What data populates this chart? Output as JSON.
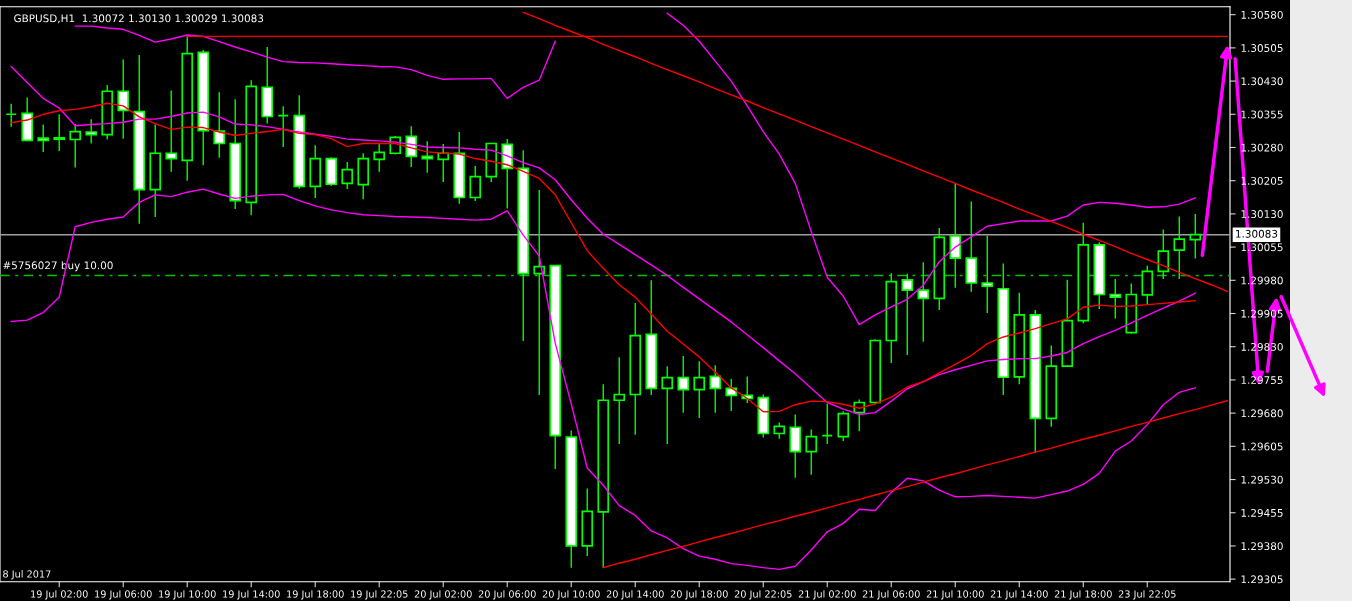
{
  "chart_data": {
    "type": "candlestick",
    "title": "GBPUSD,H1  1.30072 1.30130 1.30029 1.30083",
    "color": "#00ff00",
    "colors": [
      "#00ff00",
      "#ffffff",
      "#ffffff",
      "#ffffff",
      "#000000",
      "#ffffff",
      "#000000",
      "#ffffff",
      "#ffffff",
      "#000000",
      "#ffffff",
      "#000000",
      "#ffffff",
      "#ffffff",
      "#ffffff",
      "#000000",
      "#ffffff",
      "#00ff00",
      "#ffffff",
      "#000000",
      "#ffffff",
      "#000000",
      "#000000",
      "#000000",
      "#000000",
      "#ffffff",
      "#ffffff",
      "#000000",
      "#ffffff",
      "#000000",
      "#000000",
      "#ffffff",
      "#ffffff",
      "#000000",
      "#ffffff",
      "#ffffff",
      "#000000",
      "#000000",
      "#000000",
      "#000000",
      "#ffffff",
      "#000000",
      "#ffffff",
      "#000000",
      "#ffffff",
      "#ffffff",
      "#ffffff",
      "#ffffff",
      "#000000",
      "#ffffff",
      "#000000",
      "#00ff00",
      "#000000",
      "#000000",
      "#000000",
      "#000000",
      "#ffffff",
      "#ffffff",
      "#000000",
      "#ffffff",
      "#ffffff",
      "#ffffff",
      "#ffffff",
      "#000000",
      "#ffffff",
      "#000000",
      "#000000",
      "#000000",
      "#ffffff",
      "#ffffff",
      "#000000",
      "#000000",
      "#000000",
      "#000000",
      "#000000",
      null,
      null
    ],
    "categories": [
      null,
      null,
      null,
      "19 Jul 02:00",
      null,
      null,
      null,
      "19 Jul 06:00",
      null,
      null,
      null,
      "19 Jul 10:00",
      null,
      null,
      null,
      "19 Jul 14:00",
      null,
      null,
      null,
      "19 Jul 18:00",
      null,
      null,
      null,
      "19 Jul 22:05",
      null,
      null,
      null,
      "20 Jul 02:00",
      null,
      null,
      null,
      "20 Jul 06:00",
      null,
      null,
      null,
      "20 Jul 10:00",
      null,
      null,
      null,
      "20 Jul 14:00",
      null,
      null,
      null,
      "20 Jul 18:00",
      null,
      null,
      null,
      "20 Jul 22:05",
      null,
      null,
      null,
      "21 Jul 02:00",
      null,
      null,
      null,
      "21 Jul 06:00",
      null,
      null,
      null,
      "21 Jul 10:00",
      null,
      null,
      null,
      "21 Jul 14:00",
      null,
      null,
      null,
      "21 Jul 18:00",
      null,
      null,
      null,
      "23 Jul 22:05",
      null,
      null,
      null,
      null,
      null
    ],
    "ohlc": [
      [
        1.30355,
        1.30379,
        1.30327,
        1.30355
      ],
      [
        1.30357,
        1.30393,
        1.30294,
        1.30296
      ],
      [
        1.30301,
        1.30332,
        1.3027,
        1.30296
      ],
      [
        1.30302,
        1.30355,
        1.30272,
        1.30299
      ],
      [
        1.30298,
        1.30333,
        1.30235,
        1.30316
      ],
      [
        1.30315,
        1.30344,
        1.30289,
        1.30309
      ],
      [
        1.30309,
        1.30421,
        1.30298,
        1.30407
      ],
      [
        1.30407,
        1.30479,
        1.303,
        1.30364
      ],
      [
        1.30361,
        1.30489,
        1.30108,
        1.30185
      ],
      [
        1.30185,
        1.30332,
        1.30123,
        1.30267
      ],
      [
        1.30267,
        1.30409,
        1.30225,
        1.30255
      ],
      [
        1.30251,
        1.3053,
        1.30205,
        1.30492
      ],
      [
        1.30495,
        1.305,
        1.3024,
        1.30318
      ],
      [
        1.30317,
        1.30405,
        1.30257,
        1.30289
      ],
      [
        1.30289,
        1.30389,
        1.30141,
        1.3016
      ],
      [
        1.30156,
        1.30432,
        1.30127,
        1.30418
      ],
      [
        1.30416,
        1.30507,
        1.30334,
        1.3035
      ],
      [
        1.30352,
        1.30373,
        1.30281,
        1.30352
      ],
      [
        1.30352,
        1.30398,
        1.30187,
        1.30192
      ],
      [
        1.30192,
        1.30285,
        1.30166,
        1.30255
      ],
      [
        1.30255,
        1.30258,
        1.30193,
        1.30197
      ],
      [
        1.30199,
        1.30247,
        1.30186,
        1.3023
      ],
      [
        1.30196,
        1.30267,
        1.30163,
        1.30255
      ],
      [
        1.30253,
        1.30288,
        1.30225,
        1.30269
      ],
      [
        1.30267,
        1.30306,
        1.30264,
        1.30303
      ],
      [
        1.30305,
        1.30328,
        1.30236,
        1.3026
      ],
      [
        1.3026,
        1.30294,
        1.30223,
        1.30255
      ],
      [
        1.30253,
        1.30288,
        1.30202,
        1.30267
      ],
      [
        1.30267,
        1.30315,
        1.30153,
        1.30167
      ],
      [
        1.30167,
        1.30238,
        1.30159,
        1.30214
      ],
      [
        1.30214,
        1.30289,
        1.30202,
        1.30289
      ],
      [
        1.30287,
        1.30299,
        1.30142,
        1.30233
      ],
      [
        1.30233,
        1.30274,
        1.29843,
        1.29995
      ],
      [
        1.29995,
        1.30184,
        1.29721,
        1.30011
      ],
      [
        1.30013,
        1.30013,
        1.29554,
        1.29629
      ],
      [
        1.29626,
        1.29641,
        1.29331,
        1.2938
      ],
      [
        1.2938,
        1.2951,
        1.29357,
        1.29458
      ],
      [
        1.29457,
        1.29745,
        1.29331,
        1.29709
      ],
      [
        1.29709,
        1.29806,
        1.2961,
        1.29722
      ],
      [
        1.29722,
        1.29929,
        1.29631,
        1.29855
      ],
      [
        1.29858,
        1.2998,
        1.29721,
        1.29736
      ],
      [
        1.29736,
        1.29786,
        1.2961,
        1.2976
      ],
      [
        1.2976,
        1.29809,
        1.29681,
        1.29733
      ],
      [
        1.29733,
        1.29797,
        1.29669,
        1.2976
      ],
      [
        1.29763,
        1.29788,
        1.29681,
        1.29736
      ],
      [
        1.29736,
        1.29757,
        1.29685,
        1.2972
      ],
      [
        1.2972,
        1.29763,
        1.29703,
        1.29713
      ],
      [
        1.29715,
        1.29722,
        1.29625,
        1.29634
      ],
      [
        1.29634,
        1.29659,
        1.29622,
        1.2965
      ],
      [
        1.29648,
        1.29677,
        1.29534,
        1.29593
      ],
      [
        1.29593,
        1.29643,
        1.29541,
        1.29627
      ],
      [
        1.29629,
        1.29701,
        1.2961,
        1.29629
      ],
      [
        1.29627,
        1.29684,
        1.29617,
        1.29679
      ],
      [
        1.29681,
        1.29711,
        1.29639,
        1.29704
      ],
      [
        1.29704,
        1.29847,
        1.297,
        1.29844
      ],
      [
        1.29844,
        1.29996,
        1.29793,
        1.29977
      ],
      [
        1.29981,
        1.29995,
        1.29811,
        1.29958
      ],
      [
        1.29958,
        1.30021,
        1.29841,
        1.29939
      ],
      [
        1.29939,
        1.30098,
        1.29913,
        1.30077
      ],
      [
        1.3008,
        1.30198,
        1.29963,
        1.3003
      ],
      [
        1.3003,
        1.30158,
        1.29954,
        1.29974
      ],
      [
        1.29974,
        1.30081,
        1.29906,
        1.29967
      ],
      [
        1.29961,
        1.30018,
        1.29721,
        1.29761
      ],
      [
        1.29762,
        1.29952,
        1.29745,
        1.29902
      ],
      [
        1.29902,
        1.29913,
        1.29591,
        1.29668
      ],
      [
        1.29668,
        1.29833,
        1.29649,
        1.29786
      ],
      [
        1.29786,
        1.29981,
        1.29786,
        1.29889
      ],
      [
        1.29889,
        1.3011,
        1.29883,
        1.3006
      ],
      [
        1.3006,
        1.30066,
        1.29915,
        1.29948
      ],
      [
        1.29948,
        1.29983,
        1.29894,
        1.29942
      ],
      [
        1.29862,
        1.29973,
        1.29859,
        1.29948
      ],
      [
        1.29947,
        1.30013,
        1.29926,
        1.3
      ],
      [
        1.3,
        1.30095,
        1.29983,
        1.30046
      ],
      [
        1.30048,
        1.30124,
        1.29983,
        1.30073
      ],
      [
        1.30072,
        1.3013,
        1.30029,
        1.30083
      ],
      null,
      null
    ],
    "series": [
      {
        "type": "line",
        "color": "#ff00ff",
        "values": [
          null,
          null,
          null,
          null,
          1.30554,
          1.30554,
          1.3055,
          1.30547,
          1.30533,
          1.30518,
          1.30525,
          1.30534,
          1.30531,
          1.30519,
          1.30507,
          1.30496,
          1.30484,
          1.30474,
          1.30472,
          1.30471,
          1.30469,
          1.30467,
          1.30465,
          1.30463,
          1.30462,
          1.30456,
          1.30443,
          1.30434,
          1.30435,
          1.30435,
          1.30436,
          1.30391,
          1.30416,
          1.30432,
          1.3052,
          null,
          null,
          null,
          null,
          null,
          null,
          1.30583,
          1.30556,
          1.3052,
          1.30475,
          1.3043,
          1.30374,
          1.30316,
          1.30265,
          1.30199,
          1.3009,
          1.29987,
          1.29944,
          1.2988,
          1.29902,
          1.2992,
          1.29937,
          1.29969,
          1.30022,
          1.30055,
          1.30078,
          1.30102,
          1.30108,
          1.30114,
          1.30114,
          1.30114,
          1.30125,
          1.3015,
          1.30156,
          1.30154,
          1.3015,
          1.30145,
          1.30146,
          1.30152,
          1.30166,
          null,
          null
        ]
      },
      {
        "type": "line",
        "color": "#ff00ff",
        "values": [
          1.30463,
          1.30427,
          1.30391,
          1.30369,
          1.30329,
          1.30332,
          1.30334,
          1.30337,
          1.30344,
          1.30344,
          1.3035,
          1.30358,
          1.3036,
          1.30349,
          1.30333,
          1.30331,
          1.30327,
          1.30321,
          1.30315,
          1.3031,
          1.30305,
          1.30299,
          1.30297,
          1.30295,
          1.30292,
          1.30287,
          1.30281,
          1.3028,
          1.30279,
          1.30276,
          1.30274,
          1.30261,
          1.30246,
          1.30234,
          1.30207,
          1.30162,
          1.3012,
          1.30084,
          1.30061,
          1.30038,
          1.30015,
          1.29991,
          1.29964,
          1.29938,
          1.29912,
          1.29886,
          1.29857,
          1.29828,
          1.29798,
          1.29769,
          1.29736,
          1.29704,
          1.29689,
          1.29677,
          1.29681,
          1.29707,
          1.29735,
          1.29751,
          1.29767,
          1.29778,
          1.29788,
          1.29798,
          1.29801,
          1.29803,
          1.29803,
          1.29809,
          1.29817,
          1.29837,
          1.29853,
          1.29867,
          1.29884,
          1.29901,
          1.29917,
          1.29933,
          1.29951,
          null,
          null
        ]
      },
      {
        "type": "line",
        "color": "#ff00ff",
        "values": [
          1.29887,
          1.2989,
          1.29907,
          1.29942,
          1.30101,
          1.30111,
          1.30118,
          1.30123,
          1.30156,
          1.30173,
          1.30169,
          1.30179,
          1.30186,
          1.30175,
          1.30165,
          1.3017,
          1.30173,
          1.30174,
          1.3016,
          1.30148,
          1.30139,
          1.30133,
          1.30128,
          1.30126,
          1.30124,
          1.30123,
          1.30122,
          1.3012,
          1.30118,
          1.30116,
          1.30118,
          1.30137,
          1.30082,
          1.30035,
          1.29838,
          1.29701,
          1.29556,
          1.29517,
          1.29471,
          1.29449,
          1.29414,
          1.29398,
          1.29374,
          1.29357,
          1.2935,
          1.2934,
          1.29336,
          1.29331,
          1.29327,
          1.29334,
          1.29371,
          1.29412,
          1.29431,
          1.29463,
          1.2946,
          1.29501,
          1.29533,
          1.29527,
          1.29506,
          1.29491,
          1.29492,
          1.29494,
          1.29492,
          1.2949,
          1.29488,
          1.29496,
          1.29504,
          1.29519,
          1.29544,
          1.29594,
          1.29617,
          1.29654,
          1.29699,
          1.29727,
          1.29737,
          null,
          null
        ]
      },
      {
        "type": "line",
        "color": "#ff0000",
        "values": [
          1.30336,
          1.30342,
          1.30355,
          1.30363,
          1.30366,
          1.30372,
          1.3038,
          1.30374,
          1.30349,
          1.30334,
          1.30321,
          1.30326,
          1.30325,
          1.30315,
          1.30307,
          1.30312,
          1.30316,
          1.30321,
          1.30312,
          1.30309,
          1.303,
          1.30282,
          1.30289,
          1.30289,
          1.30289,
          1.30279,
          1.3027,
          1.30267,
          1.30265,
          1.30255,
          1.30249,
          1.30241,
          1.30226,
          1.3021,
          1.30173,
          1.3011,
          1.30047,
          1.30007,
          1.2997,
          1.29942,
          1.29904,
          1.29865,
          1.29836,
          1.29807,
          1.29773,
          1.29737,
          1.29713,
          1.29683,
          1.29684,
          1.29699,
          1.29707,
          1.29706,
          1.297,
          1.29691,
          1.29701,
          1.29716,
          1.29739,
          1.29751,
          1.29771,
          1.2979,
          1.2981,
          1.29837,
          1.29852,
          1.29861,
          1.29871,
          1.29882,
          1.29893,
          1.29919,
          1.29924,
          1.29921,
          1.29922,
          1.29925,
          1.29928,
          1.29931,
          1.29934,
          null,
          null
        ]
      },
      {
        "type": "line",
        "color": "#ff0000",
        "values": [
          null,
          null,
          null,
          null,
          null,
          null,
          null,
          null,
          null,
          null,
          null,
          1.30531,
          1.30531,
          1.30531,
          1.30531,
          1.30531,
          1.30531,
          1.30531,
          1.30531,
          1.30531,
          1.30531,
          1.30531,
          1.30531,
          1.30531,
          1.30531,
          1.30531,
          1.30531,
          1.30531,
          1.30531,
          1.30531,
          1.30531,
          1.30531,
          1.30531,
          1.30531,
          1.30531,
          1.30531,
          1.30531,
          1.30531,
          1.30531,
          1.30531,
          1.30531,
          1.30531,
          1.30531,
          1.30531,
          1.30531,
          1.30531,
          1.30531,
          1.30531,
          1.30531,
          1.30531,
          1.30531,
          1.30531,
          1.30531,
          1.30531,
          1.30531,
          1.30531,
          1.30531,
          1.30531,
          1.30531,
          1.30531,
          1.30531,
          1.30531,
          1.30531,
          1.30531,
          1.30531,
          1.30531,
          1.30531,
          1.30531,
          1.30531,
          1.30531,
          1.30531,
          1.30531,
          1.30531,
          1.30531,
          1.30531,
          1.30531,
          1.30531
        ]
      },
      {
        "type": "line",
        "color": "#ff0000",
        "values": [
          null,
          null,
          null,
          null,
          null,
          null,
          null,
          null,
          null,
          null,
          null,
          null,
          null,
          null,
          null,
          null,
          null,
          null,
          null,
          null,
          null,
          null,
          null,
          null,
          null,
          null,
          null,
          null,
          null,
          null,
          null,
          null,
          1.30585,
          1.30571,
          1.30556,
          1.30542,
          1.30528,
          1.30513,
          1.30499,
          1.30485,
          1.3047,
          1.30456,
          1.30442,
          1.30428,
          1.30413,
          1.30399,
          1.30385,
          1.3037,
          1.30356,
          1.30342,
          1.30327,
          1.30313,
          1.30299,
          1.30285,
          1.3027,
          1.30256,
          1.30242,
          1.30227,
          1.30213,
          1.30199,
          1.30184,
          1.3017,
          1.30156,
          1.30141,
          1.30127,
          1.30113,
          1.30099,
          1.30084,
          1.3007,
          1.30056,
          1.30041,
          1.30027,
          1.30013,
          1.29998,
          1.29984,
          1.2997,
          1.29955
        ]
      },
      {
        "type": "line",
        "color": "#ff0000",
        "values": [
          null,
          null,
          null,
          null,
          null,
          null,
          null,
          null,
          null,
          null,
          null,
          null,
          null,
          null,
          null,
          null,
          null,
          null,
          null,
          null,
          null,
          null,
          null,
          null,
          null,
          null,
          null,
          null,
          null,
          null,
          null,
          null,
          null,
          null,
          null,
          null,
          null,
          1.29331,
          1.29341,
          1.2935,
          1.2936,
          1.2937,
          1.29379,
          1.29389,
          1.29399,
          1.29408,
          1.29418,
          1.29428,
          1.29437,
          1.29447,
          1.29456,
          1.29466,
          1.29476,
          1.29485,
          1.29495,
          1.29505,
          1.29514,
          1.29524,
          1.29534,
          1.29543,
          1.29553,
          1.29563,
          1.29572,
          1.29582,
          1.29592,
          1.29601,
          1.29611,
          1.29621,
          1.2963,
          1.2964,
          1.2965,
          1.29659,
          1.29669,
          1.29679,
          1.29688,
          1.29698,
          1.29708
        ]
      }
    ],
    "ref_lines": [
      {
        "axis": "y",
        "value": 1.30083,
        "label": "1.30083",
        "color": "#a0a0a0",
        "line_style": "solid"
      },
      {
        "axis": "y",
        "value": 1.29991,
        "label": "#5756027 buy 10.00",
        "color": "#00c000",
        "line_style": "dashed"
      }
    ],
    "ylim": [
      1.29299,
      1.30598
    ],
    "yticks": [
      {
        "value": 1.3058,
        "label": "1.30580"
      },
      {
        "value": 1.30505,
        "label": "1.30505"
      },
      {
        "value": 1.3043,
        "label": "1.30430"
      },
      {
        "value": 1.30355,
        "label": "1.30355"
      },
      {
        "value": 1.3028,
        "label": "1.30280"
      },
      {
        "value": 1.30205,
        "label": "1.30205"
      },
      {
        "value": 1.3013,
        "label": "1.30130"
      },
      {
        "value": 1.30055,
        "label": "1.30055"
      },
      {
        "value": 1.2998,
        "label": "1.29980"
      },
      {
        "value": 1.29905,
        "label": "1.29905"
      },
      {
        "value": 1.2983,
        "label": "1.29830"
      },
      {
        "value": 1.29755,
        "label": "1.29755"
      },
      {
        "value": 1.2968,
        "label": "1.29680"
      },
      {
        "value": 1.29605,
        "label": "1.29605"
      },
      {
        "value": 1.2953,
        "label": "1.29530"
      },
      {
        "value": 1.29455,
        "label": "1.29455"
      },
      {
        "value": 1.2938,
        "label": "1.29380"
      },
      {
        "value": 1.29305,
        "label": "1.29305"
      }
    ],
    "annotations": [
      "8 Jul 2017"
    ],
    "grid": false,
    "legend": false
  }
}
